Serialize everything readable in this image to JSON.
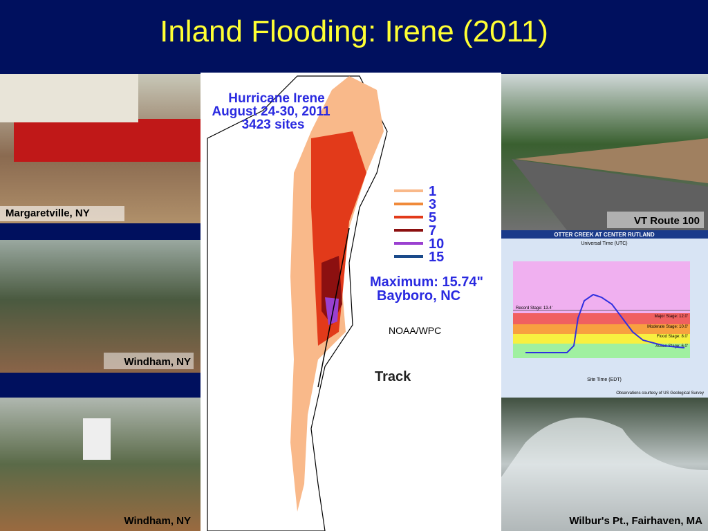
{
  "title": "Inland Flooding: Irene (2011)",
  "photos": [
    {
      "caption": "Margaretville, NY"
    },
    {
      "caption": "Windham, NY"
    },
    {
      "caption": "Windham, NY"
    },
    {
      "caption": "VT Route 100"
    },
    {
      "caption": "Wilbur's Pt., Fairhaven, MA"
    }
  ],
  "map": {
    "title_lines": [
      "Hurricane Irene",
      "August 24-30, 2011",
      "3423 sites"
    ],
    "legend": [
      {
        "label": "1",
        "color": "#f9b98a"
      },
      {
        "label": "3",
        "color": "#f08a3a"
      },
      {
        "label": "5",
        "color": "#e23a1a"
      },
      {
        "label": "7",
        "color": "#8c1010"
      },
      {
        "label": "10",
        "color": "#9a40d0"
      },
      {
        "label": "15",
        "color": "#1a4a8a"
      }
    ],
    "maximum": "Maximum:  15.74\"",
    "location": "Bayboro, NC",
    "source": "NOAA/WPC",
    "track": "Track"
  },
  "hydrograph": {
    "title": "OTTER CREEK AT CENTER RUTLAND",
    "top_axis": "Universal Time (UTC)",
    "bottom_axis": "Site Time (EDT)",
    "record": "Record Stage: 13.4'",
    "stages": [
      "Major Stage: 12.0'",
      "Moderate Stage: 10.0'",
      "Flood Stage: 8.0'",
      "Action Stage: 6.0'"
    ],
    "credit": "Observations courtesy of US Geological Survey"
  }
}
